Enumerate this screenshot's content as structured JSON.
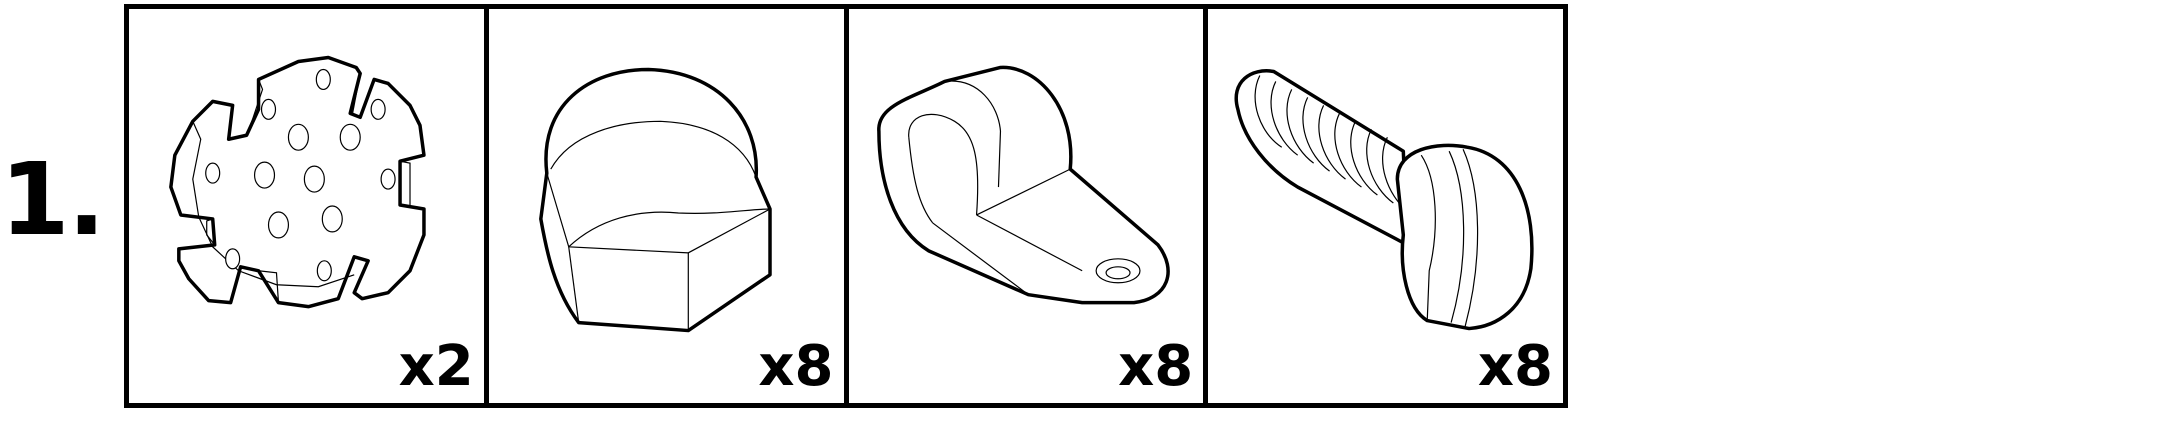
{
  "step": {
    "number": "1."
  },
  "parts": [
    {
      "name": "star-mount",
      "icon": "star-mount-icon",
      "quantity": "x2"
    },
    {
      "name": "acorn-nut",
      "icon": "acorn-nut-icon",
      "quantity": "x8"
    },
    {
      "name": "cable-clamp",
      "icon": "cable-clamp-icon",
      "quantity": "x8"
    },
    {
      "name": "slotted-screw",
      "icon": "slotted-screw-icon",
      "quantity": "x8"
    }
  ]
}
